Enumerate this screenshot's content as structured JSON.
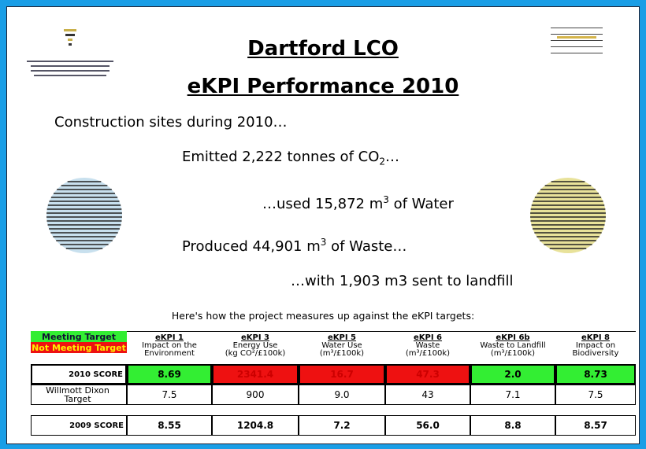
{
  "title": "Dartford LCO",
  "subtitle": "eKPI Performance 2010",
  "intro": "Construction sites during 2010…",
  "lines": [
    {
      "before": "Emitted 2,222 tonnes of CO",
      "sub": "2",
      "after": "…"
    },
    {
      "before": "…used 15,872 m",
      "sup": "3",
      "after": " of Water"
    },
    {
      "before": "Produced 44,901 m",
      "sup": "3",
      "after": " of Waste…"
    },
    {
      "before": "…with 1,903 m3 sent to landfill"
    }
  ],
  "caption": "Here's how the project measures up against the eKPI targets:",
  "table": {
    "legend": [
      {
        "text": "Meeting Target",
        "color": "#33ee33"
      },
      {
        "text": "Not Meeting Target",
        "color": "#ee1111"
      }
    ],
    "columns": [
      {
        "code": "eKPI 1",
        "name": "Impact on the Environment"
      },
      {
        "code": "eKPI 3",
        "name": "Energy Use",
        "unit": "(kg CO²/£100k)"
      },
      {
        "code": "eKPI 5",
        "name": "Water Use",
        "unit": "(m³/£100k)"
      },
      {
        "code": "eKPI 6",
        "name": "Waste",
        "unit": "(m³/£100k)"
      },
      {
        "code": "eKPI 6b",
        "name": "Waste to Landfill",
        "unit": "(m³/£100k)"
      },
      {
        "code": "eKPI 8",
        "name": "Impact on Biodiversity"
      }
    ],
    "rows": [
      {
        "label": "2010 SCORE",
        "values": [
          "8.69",
          "2341.4",
          "16.7",
          "47.3",
          "2.0",
          "8.73"
        ],
        "colors": [
          "#33ee33",
          "#ee1111",
          "#ee1111",
          "#ee1111",
          "#33ee33",
          "#33ee33"
        ]
      },
      {
        "label": "Willmott Dixon Target",
        "values": [
          "7.5",
          "900",
          "9.0",
          "43",
          "7.1",
          "7.5"
        ]
      },
      {
        "label": "2009 SCORE",
        "values": [
          "8.55",
          "1204.8",
          "7.2",
          "56.0",
          "8.8",
          "8.57"
        ]
      }
    ]
  }
}
